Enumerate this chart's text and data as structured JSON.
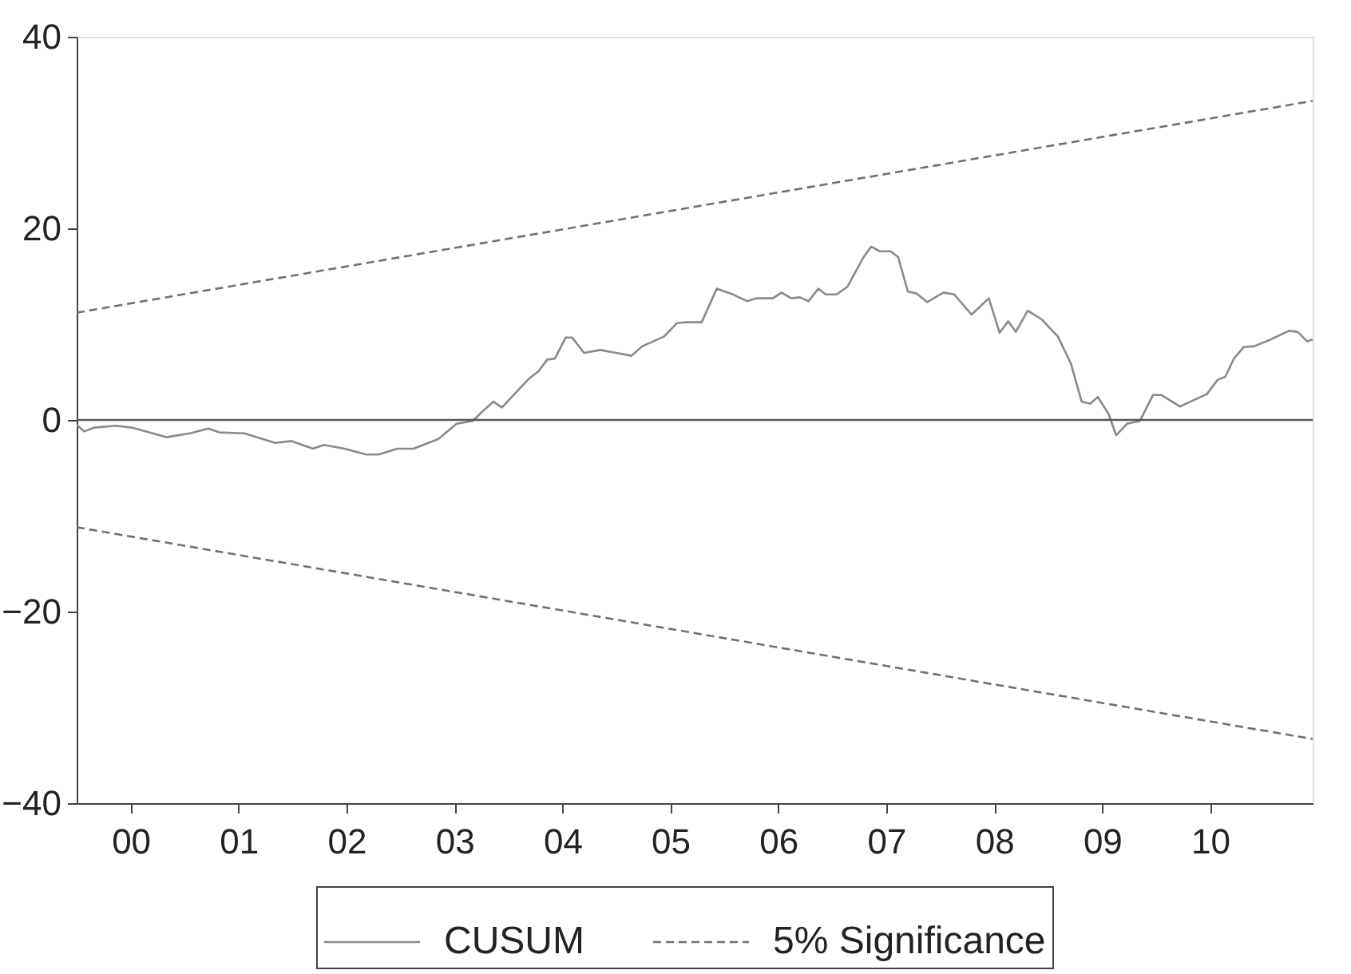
{
  "chart_data": {
    "type": "line",
    "xlim": [
      1999.5,
      2010.95
    ],
    "ylim": [
      -40,
      40
    ],
    "xticks": [
      {
        "value": 2000,
        "label": "00"
      },
      {
        "value": 2001,
        "label": "01"
      },
      {
        "value": 2002,
        "label": "02"
      },
      {
        "value": 2003,
        "label": "03"
      },
      {
        "value": 2004,
        "label": "04"
      },
      {
        "value": 2005,
        "label": "05"
      },
      {
        "value": 2006,
        "label": "06"
      },
      {
        "value": 2007,
        "label": "07"
      },
      {
        "value": 2008,
        "label": "08"
      },
      {
        "value": 2009,
        "label": "09"
      },
      {
        "value": 2010,
        "label": "10"
      }
    ],
    "yticks": [
      -40,
      -20,
      0,
      20,
      40
    ],
    "grid": false,
    "legend": "bottom",
    "ref_lines": [
      {
        "axis": "y",
        "value": 0,
        "color": "#555555"
      }
    ],
    "series": [
      {
        "name": "CUSUM",
        "color": "#8a8a8a",
        "line_style": "solid",
        "x": [
          1999.5,
          1999.57,
          1999.66,
          1999.86,
          2000.01,
          2000.33,
          2000.55,
          2000.72,
          2000.82,
          2001.05,
          2001.34,
          2001.49,
          2001.69,
          2001.79,
          2001.98,
          2002.18,
          2002.3,
          2002.47,
          2002.62,
          2002.85,
          2003.02,
          2003.17,
          2003.26,
          2003.36,
          2003.44,
          2003.68,
          2003.78,
          2003.86,
          2003.93,
          2004.03,
          2004.09,
          2004.2,
          2004.35,
          2004.5,
          2004.64,
          2004.74,
          2004.94,
          2005.06,
          2005.14,
          2005.29,
          2005.43,
          2005.58,
          2005.71,
          2005.8,
          2005.95,
          2006.03,
          2006.12,
          2006.2,
          2006.28,
          2006.37,
          2006.44,
          2006.54,
          2006.64,
          2006.79,
          2006.86,
          2006.94,
          2007.04,
          2007.11,
          2007.2,
          2007.28,
          2007.38,
          2007.53,
          2007.63,
          2007.79,
          2007.95,
          2008.05,
          2008.13,
          2008.2,
          2008.31,
          2008.44,
          2008.59,
          2008.71,
          2008.81,
          2008.89,
          2008.96,
          2009.06,
          2009.13,
          2009.23,
          2009.35,
          2009.47,
          2009.55,
          2009.72,
          2009.97,
          2010.07,
          2010.14,
          2010.22,
          2010.31,
          2010.41,
          2010.56,
          2010.73,
          2010.81,
          2010.9,
          2010.95
        ],
        "values": [
          -0.5,
          -1.2,
          -0.8,
          -0.6,
          -0.8,
          -1.8,
          -1.4,
          -0.9,
          -1.3,
          -1.4,
          -2.4,
          -2.2,
          -3.0,
          -2.6,
          -3.0,
          -3.6,
          -3.6,
          -3.0,
          -3.0,
          -2.0,
          -0.4,
          -0.1,
          0.9,
          1.9,
          1.3,
          4.2,
          5.1,
          6.3,
          6.4,
          8.6,
          8.6,
          7.0,
          7.3,
          7.0,
          6.7,
          7.7,
          8.7,
          10.1,
          10.2,
          10.2,
          13.7,
          13.1,
          12.4,
          12.7,
          12.7,
          13.3,
          12.7,
          12.8,
          12.4,
          13.7,
          13.1,
          13.1,
          13.9,
          17.0,
          18.1,
          17.6,
          17.6,
          17.0,
          13.4,
          13.2,
          12.3,
          13.3,
          13.1,
          11.0,
          12.7,
          9.1,
          10.3,
          9.2,
          11.4,
          10.5,
          8.7,
          5.9,
          1.9,
          1.7,
          2.4,
          0.6,
          -1.6,
          -0.4,
          -0.1,
          2.6,
          2.6,
          1.4,
          2.7,
          4.2,
          4.5,
          6.4,
          7.6,
          7.7,
          8.4,
          9.3,
          9.2,
          8.2,
          8.4
        ]
      },
      {
        "name": "5% Significance",
        "color": "#707070",
        "line_style": "dashed",
        "x": [
          1999.5,
          2010.95
        ],
        "values": [
          11.2,
          33.3
        ]
      },
      {
        "color": "#707070",
        "line_style": "dashed",
        "x": [
          1999.5,
          2010.95
        ],
        "values": [
          -11.2,
          -33.3
        ]
      }
    ]
  }
}
